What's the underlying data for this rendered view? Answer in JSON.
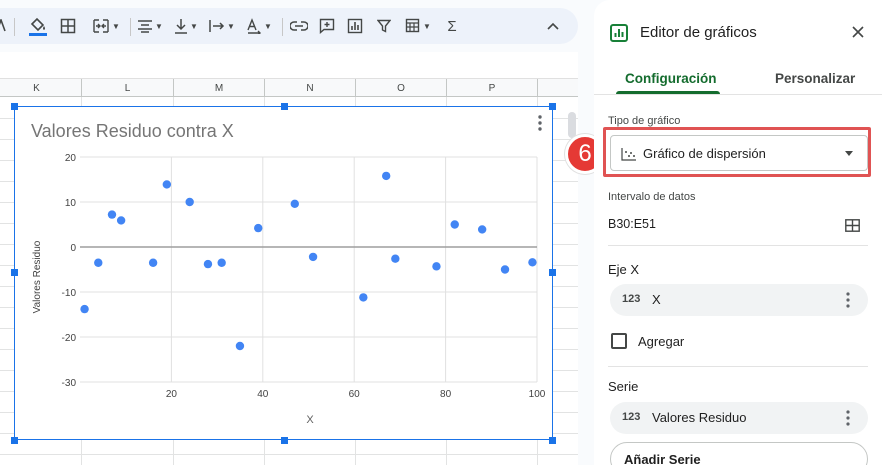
{
  "toolbar": {
    "items": [
      "text-color",
      "fill-color",
      "borders",
      "merge-cells",
      "align-horizontal",
      "align-vertical",
      "text-wrap",
      "text-rotation",
      "insert-link",
      "insert-comment",
      "insert-chart",
      "create-filter",
      "filter-views",
      "functions",
      "collapse"
    ]
  },
  "sheet": {
    "columns": [
      "K",
      "L",
      "M",
      "N",
      "O",
      "P"
    ]
  },
  "chart_data": {
    "type": "scatter",
    "title": "Valores Residuo contra X",
    "xlabel": "X",
    "ylabel": "Valores Residuo",
    "xlim": [
      0,
      100
    ],
    "ylim": [
      -30,
      20
    ],
    "xticks": [
      20,
      40,
      60,
      80,
      100
    ],
    "yticks": [
      20,
      10,
      0,
      -10,
      -20,
      -30
    ],
    "grid": true,
    "point_color": "#4285f4",
    "points": [
      {
        "x": 1,
        "y": -13.8
      },
      {
        "x": 4,
        "y": -3.5
      },
      {
        "x": 7,
        "y": 7.2
      },
      {
        "x": 9,
        "y": 5.9
      },
      {
        "x": 16,
        "y": -3.5
      },
      {
        "x": 19,
        "y": 13.9
      },
      {
        "x": 24,
        "y": 10.0
      },
      {
        "x": 28,
        "y": -3.8
      },
      {
        "x": 31,
        "y": -3.5
      },
      {
        "x": 35,
        "y": -22.0
      },
      {
        "x": 39,
        "y": 4.2
      },
      {
        "x": 47,
        "y": 9.6
      },
      {
        "x": 51,
        "y": -2.2
      },
      {
        "x": 62,
        "y": -11.2
      },
      {
        "x": 67,
        "y": 15.8
      },
      {
        "x": 69,
        "y": -2.6
      },
      {
        "x": 78,
        "y": -4.3
      },
      {
        "x": 82,
        "y": 5.0
      },
      {
        "x": 88,
        "y": 3.9
      },
      {
        "x": 93,
        "y": -5.0
      },
      {
        "x": 99,
        "y": -3.4
      }
    ]
  },
  "panel": {
    "title": "Editor de gráficos",
    "tabs": [
      {
        "label": "Configuración",
        "active": true
      },
      {
        "label": "Personalizar",
        "active": false
      }
    ],
    "chart_type": {
      "label": "Tipo de gráfico",
      "value": "Gráfico de dispersión"
    },
    "data_range": {
      "label": "Intervalo de datos",
      "value": "B30:E51"
    },
    "x_axis": {
      "heading": "Eje X",
      "type_badge": "123",
      "value": "X"
    },
    "add_checkbox": {
      "label": "Agregar",
      "checked": false
    },
    "series": {
      "heading": "Serie",
      "type_badge": "123",
      "value": "Valores Residuo"
    },
    "add_series_label": "Añadir Serie"
  },
  "annotation": {
    "step_number": "6",
    "color": "#e53935"
  },
  "colors": {
    "accent_green": "#146c2e",
    "selection_blue": "#1a73e8",
    "highlight_red": "#e05353"
  }
}
